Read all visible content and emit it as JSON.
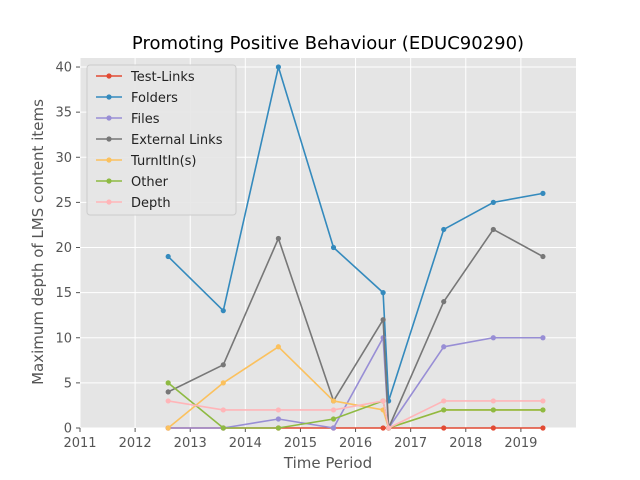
{
  "chart_data": {
    "type": "line",
    "title": "Promoting Positive Behaviour (EDUC90290)",
    "xlabel": "Time Period",
    "ylabel": "Maximum depth of LMS content items",
    "xlim": [
      2011,
      2020
    ],
    "ylim": [
      0,
      41
    ],
    "xticks": [
      2011,
      2012,
      2013,
      2014,
      2015,
      2016,
      2017,
      2018,
      2019
    ],
    "yticks": [
      0,
      5,
      10,
      15,
      20,
      25,
      30,
      35,
      40
    ],
    "grid": true,
    "legend_position": "top-left",
    "x": [
      2012.6,
      2013.6,
      2014.6,
      2015.6,
      2016.5,
      2016.6,
      2017.6,
      2018.5,
      2019.4
    ],
    "series": [
      {
        "name": "Test-Links",
        "color": "#E24A33",
        "values": [
          0,
          0,
          0,
          0,
          0,
          0,
          0,
          0,
          0
        ]
      },
      {
        "name": "Folders",
        "color": "#348ABD",
        "values": [
          19,
          13,
          40,
          20,
          15,
          3,
          22,
          25,
          26
        ]
      },
      {
        "name": "Files",
        "color": "#988ED5",
        "values": [
          0,
          0,
          1,
          0,
          10,
          0,
          9,
          10,
          10
        ]
      },
      {
        "name": "External Links",
        "color": "#777777",
        "values": [
          4,
          7,
          21,
          3,
          12,
          0,
          14,
          22,
          19
        ]
      },
      {
        "name": "TurnItIn(s)",
        "color": "#FBC15E",
        "values": [
          0,
          5,
          9,
          3,
          2,
          0,
          2,
          2,
          2
        ]
      },
      {
        "name": "Other",
        "color": "#8EBA42",
        "values": [
          5,
          0,
          0,
          1,
          3,
          0,
          2,
          2,
          2
        ]
      },
      {
        "name": "Depth",
        "color": "#FFB5B8",
        "values": [
          3,
          2,
          2,
          2,
          3,
          0,
          3,
          3,
          3
        ]
      }
    ]
  }
}
